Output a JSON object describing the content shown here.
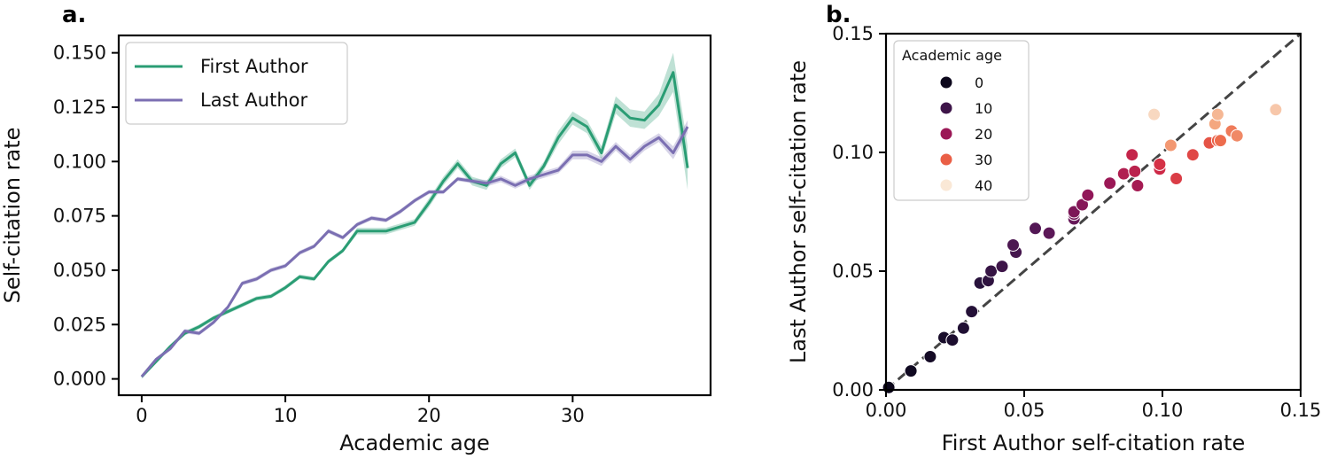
{
  "panels": [
    {
      "label": "a."
    },
    {
      "label": "b."
    }
  ],
  "colors": {
    "first_author": "#2a9d74",
    "last_author": "#7b6fb2",
    "diagonal": "#444444"
  },
  "chart_data": [
    {
      "type": "line",
      "xlabel": "Academic age",
      "ylabel": "Self-citation rate",
      "xlim": [
        -1.6,
        39.6
      ],
      "ylim": [
        -0.0075,
        0.158
      ],
      "xticks": [
        0,
        10,
        20,
        30
      ],
      "xtick_labels": [
        "0",
        "10",
        "20",
        "30"
      ],
      "yticks": [
        0.0,
        0.025,
        0.05,
        0.075,
        0.1,
        0.125,
        0.15
      ],
      "ytick_labels": [
        "0.000",
        "0.025",
        "0.050",
        "0.075",
        "0.100",
        "0.125",
        "0.150"
      ],
      "legend": "top-left",
      "x": [
        0,
        1,
        2,
        3,
        4,
        5,
        6,
        7,
        8,
        9,
        10,
        11,
        12,
        13,
        14,
        15,
        16,
        17,
        18,
        19,
        20,
        21,
        22,
        23,
        24,
        25,
        26,
        27,
        28,
        29,
        30,
        31,
        32,
        33,
        34,
        35,
        36,
        37,
        38
      ],
      "series": [
        {
          "name": "First Author",
          "color": "#2a9d74",
          "values": [
            0.001,
            0.008,
            0.015,
            0.021,
            0.024,
            0.028,
            0.031,
            0.034,
            0.037,
            0.038,
            0.042,
            0.047,
            0.046,
            0.054,
            0.059,
            0.068,
            0.068,
            0.068,
            0.07,
            0.072,
            0.081,
            0.091,
            0.099,
            0.091,
            0.089,
            0.099,
            0.104,
            0.089,
            0.098,
            0.111,
            0.12,
            0.116,
            0.104,
            0.126,
            0.12,
            0.119,
            0.126,
            0.141,
            0.097
          ],
          "band": [
            0.001,
            0.001,
            0.001,
            0.001,
            0.001,
            0.001,
            0.001,
            0.001,
            0.001,
            0.001,
            0.001,
            0.001,
            0.001,
            0.001,
            0.001,
            0.0015,
            0.0015,
            0.0015,
            0.0015,
            0.0015,
            0.002,
            0.002,
            0.002,
            0.002,
            0.002,
            0.002,
            0.002,
            0.002,
            0.002,
            0.003,
            0.003,
            0.003,
            0.003,
            0.004,
            0.004,
            0.004,
            0.005,
            0.009,
            0.01
          ]
        },
        {
          "name": "Last Author",
          "color": "#7b6fb2",
          "values": [
            0.001,
            0.009,
            0.014,
            0.022,
            0.021,
            0.026,
            0.033,
            0.044,
            0.046,
            0.05,
            0.052,
            0.058,
            0.061,
            0.068,
            0.065,
            0.071,
            0.074,
            0.073,
            0.077,
            0.082,
            0.086,
            0.086,
            0.092,
            0.091,
            0.09,
            0.092,
            0.089,
            0.092,
            0.094,
            0.096,
            0.103,
            0.103,
            0.1,
            0.107,
            0.101,
            0.107,
            0.111,
            0.104,
            0.116
          ],
          "band": [
            0.0005,
            0.0008,
            0.001,
            0.001,
            0.001,
            0.001,
            0.001,
            0.001,
            0.001,
            0.001,
            0.001,
            0.001,
            0.001,
            0.001,
            0.001,
            0.001,
            0.001,
            0.001,
            0.001,
            0.001,
            0.001,
            0.001,
            0.001,
            0.001,
            0.0015,
            0.0015,
            0.0015,
            0.0015,
            0.0015,
            0.0015,
            0.002,
            0.002,
            0.002,
            0.002,
            0.002,
            0.002,
            0.002,
            0.003,
            0.003
          ]
        }
      ]
    },
    {
      "type": "scatter",
      "xlabel": "First Author self-citation rate",
      "ylabel": "Last Author self-citation rate",
      "xlim": [
        0,
        0.15
      ],
      "ylim": [
        0,
        0.15
      ],
      "xticks": [
        0.0,
        0.05,
        0.1,
        0.15
      ],
      "xtick_labels": [
        "0.00",
        "0.05",
        "0.10",
        "0.15"
      ],
      "yticks": [
        0.0,
        0.05,
        0.1,
        0.15
      ],
      "ytick_labels": [
        "0.00",
        "0.05",
        "0.10",
        "0.15"
      ],
      "diagonal": {
        "from": [
          0,
          0
        ],
        "to": [
          0.15,
          0.15
        ],
        "style": "dashed"
      },
      "legend": "top-left",
      "legend_title": "Academic age",
      "legend_entries": [
        {
          "label": "0",
          "age": 0
        },
        {
          "label": "10",
          "age": 10
        },
        {
          "label": "20",
          "age": 20
        },
        {
          "label": "30",
          "age": 30
        },
        {
          "label": "40",
          "age": 40
        }
      ],
      "color_scale": "rocket",
      "points": [
        {
          "age": 0,
          "x": 0.001,
          "y": 0.001
        },
        {
          "age": 1,
          "x": 0.009,
          "y": 0.008
        },
        {
          "age": 2,
          "x": 0.016,
          "y": 0.014
        },
        {
          "age": 3,
          "x": 0.021,
          "y": 0.022
        },
        {
          "age": 4,
          "x": 0.024,
          "y": 0.021
        },
        {
          "age": 5,
          "x": 0.028,
          "y": 0.026
        },
        {
          "age": 6,
          "x": 0.031,
          "y": 0.033
        },
        {
          "age": 7,
          "x": 0.034,
          "y": 0.045
        },
        {
          "age": 8,
          "x": 0.037,
          "y": 0.046
        },
        {
          "age": 9,
          "x": 0.038,
          "y": 0.05
        },
        {
          "age": 10,
          "x": 0.042,
          "y": 0.052
        },
        {
          "age": 11,
          "x": 0.047,
          "y": 0.058
        },
        {
          "age": 12,
          "x": 0.046,
          "y": 0.061
        },
        {
          "age": 13,
          "x": 0.054,
          "y": 0.068
        },
        {
          "age": 14,
          "x": 0.059,
          "y": 0.066
        },
        {
          "age": 15,
          "x": 0.068,
          "y": 0.072
        },
        {
          "age": 16,
          "x": 0.068,
          "y": 0.074
        },
        {
          "age": 17,
          "x": 0.068,
          "y": 0.075
        },
        {
          "age": 18,
          "x": 0.071,
          "y": 0.078
        },
        {
          "age": 19,
          "x": 0.073,
          "y": 0.082
        },
        {
          "age": 20,
          "x": 0.081,
          "y": 0.087
        },
        {
          "age": 21,
          "x": 0.091,
          "y": 0.086
        },
        {
          "age": 22,
          "x": 0.086,
          "y": 0.091
        },
        {
          "age": 23,
          "x": 0.09,
          "y": 0.092
        },
        {
          "age": 24,
          "x": 0.089,
          "y": 0.099
        },
        {
          "age": 25,
          "x": 0.099,
          "y": 0.093
        },
        {
          "age": 26,
          "x": 0.099,
          "y": 0.095
        },
        {
          "age": 27,
          "x": 0.105,
          "y": 0.089
        },
        {
          "age": 28,
          "x": 0.111,
          "y": 0.099
        },
        {
          "age": 29,
          "x": 0.117,
          "y": 0.104
        },
        {
          "age": 30,
          "x": 0.12,
          "y": 0.105
        },
        {
          "age": 31,
          "x": 0.121,
          "y": 0.105
        },
        {
          "age": 32,
          "x": 0.125,
          "y": 0.109
        },
        {
          "age": 33,
          "x": 0.127,
          "y": 0.107
        },
        {
          "age": 34,
          "x": 0.103,
          "y": 0.103
        },
        {
          "age": 35,
          "x": 0.119,
          "y": 0.112
        },
        {
          "age": 36,
          "x": 0.12,
          "y": 0.116
        },
        {
          "age": 37,
          "x": 0.141,
          "y": 0.118
        },
        {
          "age": 38,
          "x": 0.097,
          "y": 0.116
        }
      ]
    }
  ]
}
